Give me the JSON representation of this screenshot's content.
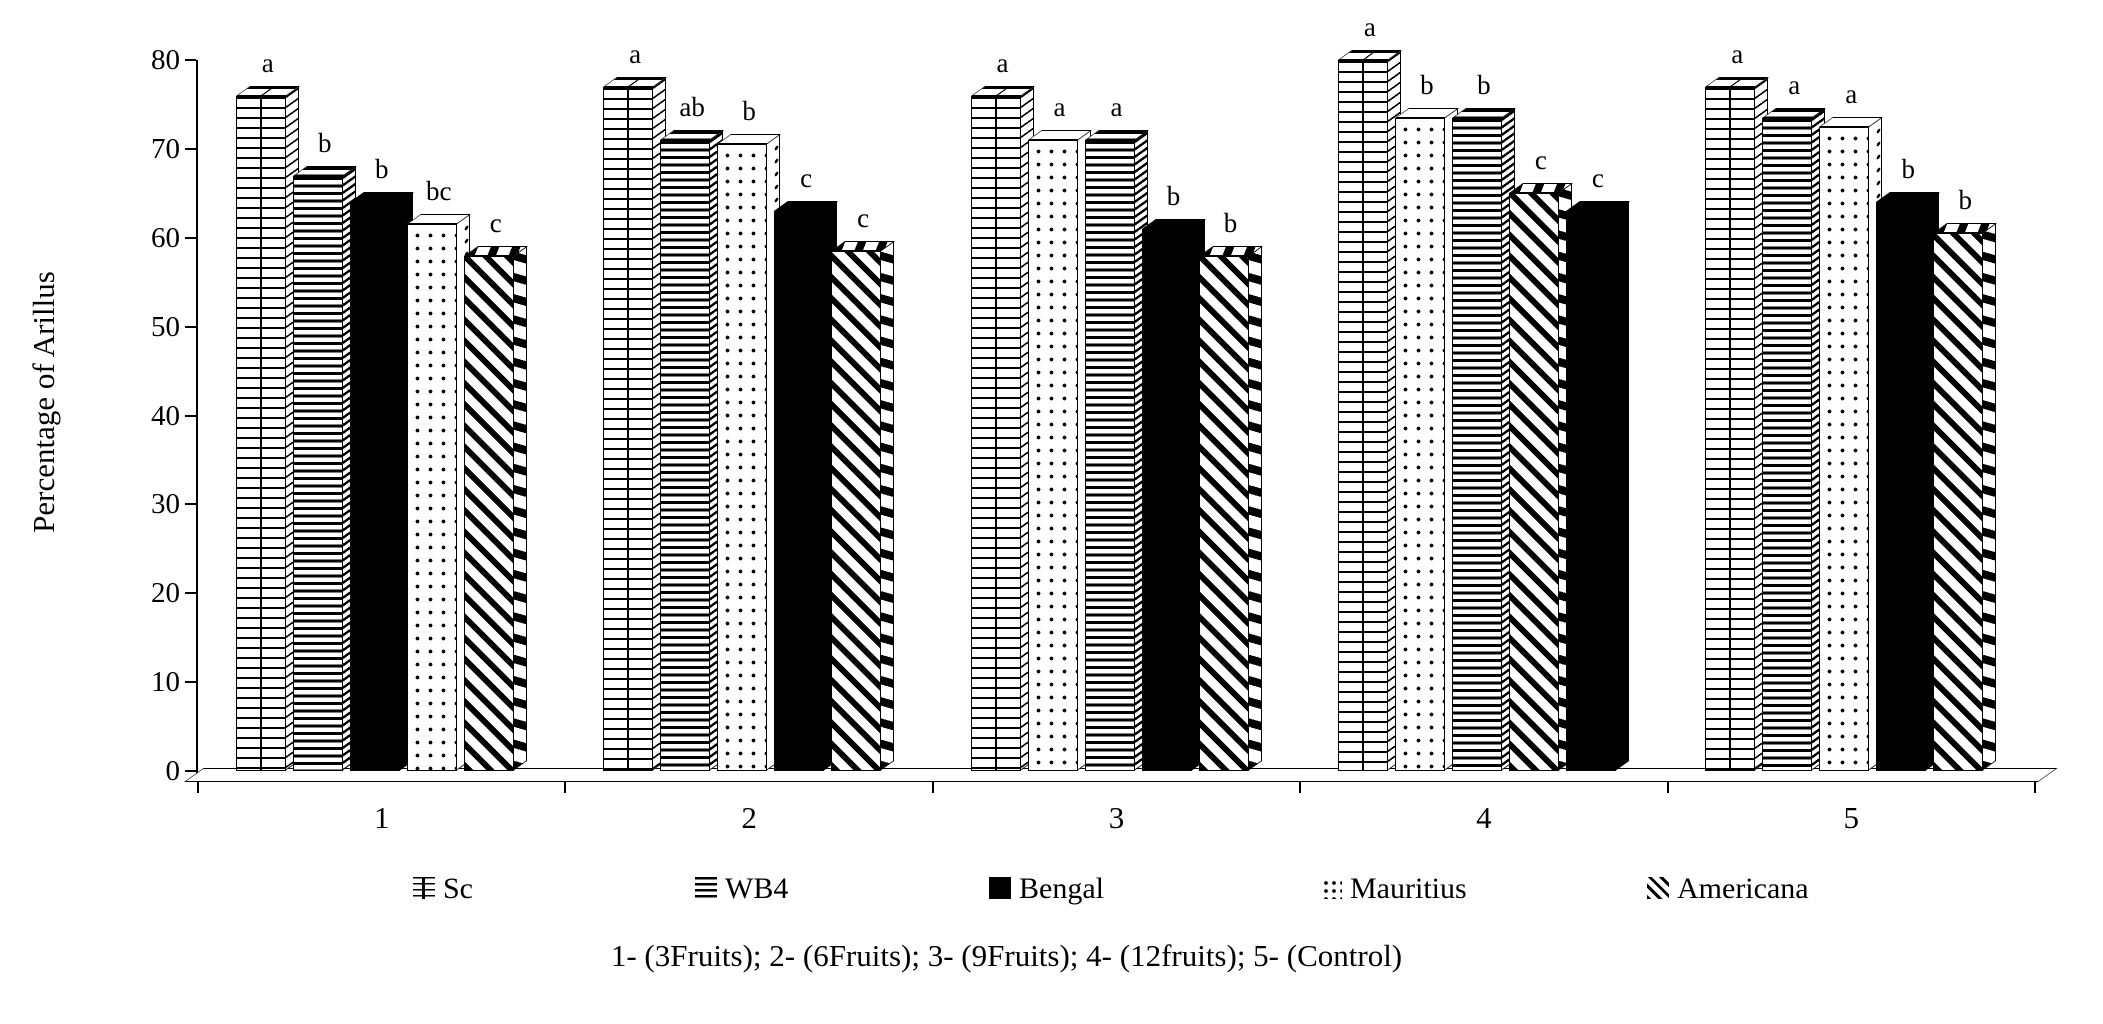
{
  "chart_data": {
    "type": "bar",
    "style": "3d-clustered-black-white-patterns",
    "title": "",
    "xlabel": "",
    "ylabel": "Percentage of Arillus",
    "ylim": [
      0,
      80
    ],
    "yticks": [
      "0",
      "10",
      "20",
      "30",
      "40",
      "50",
      "60",
      "70",
      "80"
    ],
    "categories": [
      "1",
      "2",
      "3",
      "4",
      "5"
    ],
    "grid": false,
    "legend_position": "bottom",
    "colors": {
      "foreground": "#000000",
      "background": "#ffffff"
    },
    "legend": [
      {
        "name": "Sc",
        "pattern": "vertical-grid"
      },
      {
        "name": "WB4",
        "pattern": "horizontal-stripes"
      },
      {
        "name": "Bengal",
        "pattern": "solid-black"
      },
      {
        "name": "Mauritius",
        "pattern": "dots"
      },
      {
        "name": "Americana",
        "pattern": "diagonal-stripes"
      }
    ],
    "series": [
      {
        "name": "Sc",
        "pattern": "vertical-grid",
        "values": [
          76,
          77,
          76,
          80,
          77
        ],
        "letters": [
          "a",
          "a",
          "a",
          "a",
          "a"
        ]
      },
      {
        "name": "WB4",
        "pattern": "horizontal-stripes",
        "values": [
          67,
          71,
          71,
          73.5,
          73.5
        ],
        "letters": [
          "b",
          "ab",
          "a",
          "b",
          "a"
        ]
      },
      {
        "name": "Bengal",
        "pattern": "solid-black",
        "values": [
          64,
          63,
          61,
          63,
          64
        ],
        "letters": [
          "b",
          "c",
          "b",
          "c",
          "b"
        ]
      },
      {
        "name": "Mauritius",
        "pattern": "dots",
        "values": [
          61.5,
          70.5,
          71,
          73.5,
          72.5
        ],
        "letters": [
          "bc",
          "b",
          "a",
          "b",
          "a"
        ]
      },
      {
        "name": "Americana",
        "pattern": "diagonal-stripes",
        "values": [
          58,
          58.5,
          58,
          65,
          60.5
        ],
        "letters": [
          "c",
          "c",
          "b",
          "c",
          "b"
        ]
      }
    ],
    "groups": [
      {
        "label": "1",
        "bars": [
          {
            "series": "Sc",
            "value": 76,
            "letter": "a"
          },
          {
            "series": "WB4",
            "value": 67,
            "letter": "b"
          },
          {
            "series": "Bengal",
            "value": 64,
            "letter": "b"
          },
          {
            "series": "Mauritius",
            "value": 61.5,
            "letter": "bc"
          },
          {
            "series": "Americana",
            "value": 58,
            "letter": "c"
          }
        ]
      },
      {
        "label": "2",
        "bars": [
          {
            "series": "Sc",
            "value": 77,
            "letter": "a"
          },
          {
            "series": "WB4",
            "value": 71,
            "letter": "ab"
          },
          {
            "series": "Mauritius",
            "value": 70.5,
            "letter": "b"
          },
          {
            "series": "Bengal",
            "value": 63,
            "letter": "c"
          },
          {
            "series": "Americana",
            "value": 58.5,
            "letter": "c"
          }
        ]
      },
      {
        "label": "3",
        "bars": [
          {
            "series": "Sc",
            "value": 76,
            "letter": "a"
          },
          {
            "series": "Mauritius",
            "value": 71,
            "letter": "a"
          },
          {
            "series": "WB4",
            "value": 71,
            "letter": "a"
          },
          {
            "series": "Bengal",
            "value": 61,
            "letter": "b"
          },
          {
            "series": "Americana",
            "value": 58,
            "letter": "b"
          }
        ]
      },
      {
        "label": "4",
        "bars": [
          {
            "series": "Sc",
            "value": 80,
            "letter": "a"
          },
          {
            "series": "Mauritius",
            "value": 73.5,
            "letter": "b"
          },
          {
            "series": "WB4",
            "value": 73.5,
            "letter": "b"
          },
          {
            "series": "Americana",
            "value": 65,
            "letter": "c"
          },
          {
            "series": "Bengal",
            "value": 63,
            "letter": "c"
          }
        ]
      },
      {
        "label": "5",
        "bars": [
          {
            "series": "Sc",
            "value": 77,
            "letter": "a"
          },
          {
            "series": "WB4",
            "value": 73.5,
            "letter": "a"
          },
          {
            "series": "Mauritius",
            "value": 72.5,
            "letter": "a"
          },
          {
            "series": "Bengal",
            "value": 64,
            "letter": "b"
          },
          {
            "series": "Americana",
            "value": 60.5,
            "letter": "b"
          }
        ]
      }
    ],
    "caption": "1- (3Fruits); 2- (6Fruits); 3- (9Fruits); 4- (12fruits); 5- (Control)"
  }
}
